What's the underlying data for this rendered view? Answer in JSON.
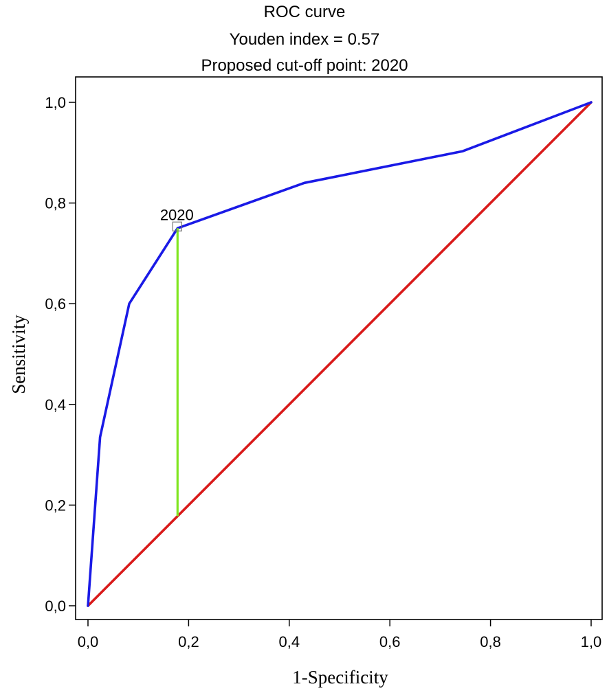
{
  "chart_data": {
    "type": "line",
    "title": "ROC curve",
    "subtitle_lines": [
      "Youden index  = 0.57",
      "Proposed cut-off point: 2020"
    ],
    "xlabel": "1-Specificity",
    "ylabel": "Sensitivity",
    "xlim": [
      0,
      1
    ],
    "ylim": [
      0,
      1
    ],
    "x_ticks": [
      0,
      0.2,
      0.4,
      0.6,
      0.8,
      1.0
    ],
    "y_ticks": [
      0,
      0.2,
      0.4,
      0.6,
      0.8,
      1.0
    ],
    "x_tick_labels": [
      "0,0",
      "0,2",
      "0,4",
      "0,6",
      "0,8",
      "1,0"
    ],
    "y_tick_labels": [
      "0,0",
      "0,2",
      "0,4",
      "0,6",
      "0,8",
      "1,0"
    ],
    "grid": false,
    "series": [
      {
        "color": "#1a1ae6",
        "x": [
          0.0,
          0.024,
          0.082,
          0.178,
          0.43,
          0.745,
          1.0
        ],
        "y": [
          0.0,
          0.335,
          0.6,
          0.75,
          0.84,
          0.903,
          1.0
        ]
      },
      {
        "color": "#d91a1a",
        "x": [
          0.0,
          1.0
        ],
        "y": [
          0.0,
          1.0
        ]
      }
    ],
    "youden_line": {
      "color": "#80e620",
      "x": 0.178,
      "y_from": 0.178,
      "y_to": 0.75
    },
    "annotations": [
      {
        "text": "2020",
        "x": 0.178,
        "y": 0.75
      }
    ]
  }
}
